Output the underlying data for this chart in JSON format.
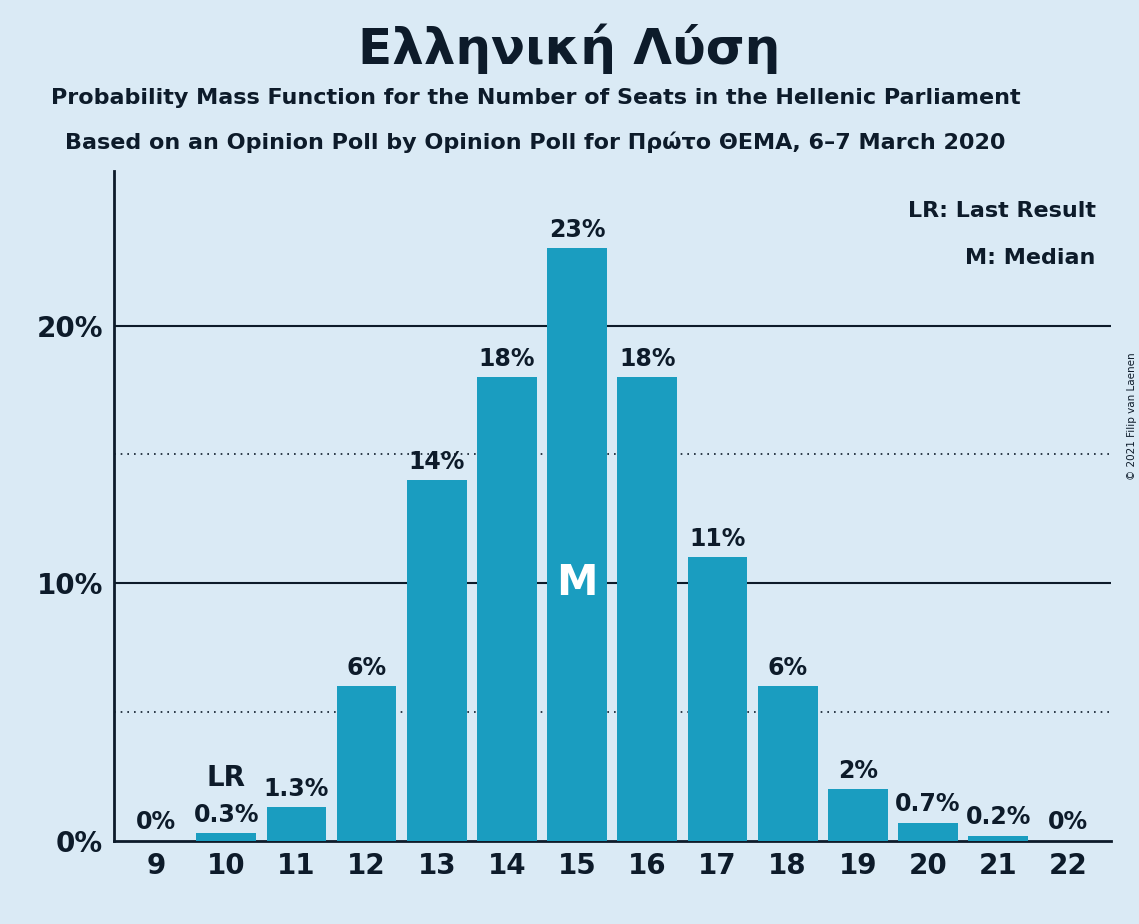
{
  "title": "Ελληνική Λύση",
  "subtitle1": "Probability Mass Function for the Number of Seats in the Hellenic Parliament",
  "subtitle2": "Based on an Opinion Poll by Opinion Poll for Πρώτο ΘΕΜΑ, 6–7 March 2020",
  "copyright": "© 2021 Filip van Laenen",
  "categories": [
    9,
    10,
    11,
    12,
    13,
    14,
    15,
    16,
    17,
    18,
    19,
    20,
    21,
    22
  ],
  "values": [
    0.0,
    0.3,
    1.3,
    6.0,
    14.0,
    18.0,
    23.0,
    18.0,
    11.0,
    6.0,
    2.0,
    0.7,
    0.2,
    0.0
  ],
  "labels": [
    "0%",
    "0.3%",
    "1.3%",
    "6%",
    "14%",
    "18%",
    "23%",
    "18%",
    "11%",
    "6%",
    "2%",
    "0.7%",
    "0.2%",
    "0%"
  ],
  "bar_color": "#1a9dc0",
  "background_color": "#daeaf5",
  "text_color": "#0d1b2a",
  "yticks": [
    0,
    10,
    20
  ],
  "ytick_labels": [
    "0%",
    "10%",
    "20%"
  ],
  "dotted_lines": [
    5,
    15
  ],
  "ylim": [
    0,
    26
  ],
  "median_seat": 15,
  "median_label": "M",
  "lr_seat": 10,
  "lr_label": "LR",
  "legend_lr": "LR: Last Result",
  "legend_m": "M: Median",
  "title_fontsize": 36,
  "subtitle_fontsize": 16,
  "label_fontsize": 16,
  "tick_fontsize": 20,
  "annotation_fontsize": 17,
  "median_fontsize": 30,
  "lr_fontsize": 20
}
